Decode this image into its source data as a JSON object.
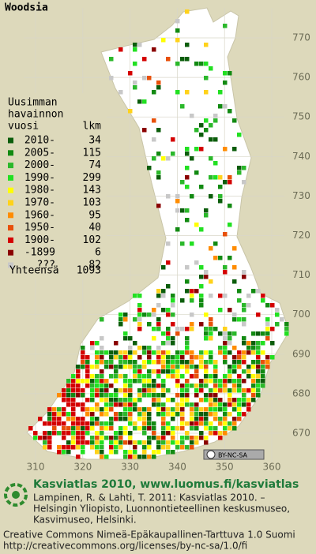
{
  "title": "Woodsia",
  "legend": {
    "heading": [
      "Uusimman",
      "havainnon",
      "vuosi"
    ],
    "count_heading": "lkm",
    "items": [
      {
        "label": "2010-",
        "count": 34,
        "color": "#0b5d0b"
      },
      {
        "label": "2005-",
        "count": 115,
        "color": "#128a12"
      },
      {
        "label": "2000-",
        "count": 74,
        "color": "#2bb82b"
      },
      {
        "label": "1990-",
        "count": 299,
        "color": "#22e022"
      },
      {
        "label": "1980-",
        "count": 143,
        "color": "#ffff00"
      },
      {
        "label": "1970-",
        "count": 103,
        "color": "#ffd21a"
      },
      {
        "label": "1960-",
        "count": 95,
        "color": "#ff8c00"
      },
      {
        "label": "1950-",
        "count": 40,
        "color": "#e8500a"
      },
      {
        "label": "1900-",
        "count": 102,
        "color": "#d40000"
      },
      {
        "label": "-1899",
        "count": 6,
        "color": "#8a0000"
      },
      {
        "label": "???",
        "count": 82,
        "color": "#c8c8c8"
      }
    ],
    "total_label": "Yhteensä",
    "total": 1093
  },
  "grid": {
    "northing_labels": [
      770,
      760,
      750,
      740,
      730,
      720,
      710,
      700,
      690,
      680,
      670
    ],
    "easting_labels": [
      310,
      320,
      330,
      340,
      350,
      360
    ]
  },
  "license_badge": "BY-NC-SA",
  "footer": {
    "title": "Kasviatlas 2010, www.luomus.fi/kasviatlas",
    "citation": [
      "Lampinen, R. & Lahti, T. 2011: Kasviatlas 2010. –",
      "Helsingin Yliopisto, Luonnontieteellinen keskusmuseo,",
      "Kasvimuseo, Helsinki."
    ],
    "license": [
      "Creative Commons Nimeä-Epäkaupallinen-Tarttuva 1.0 Suomi",
      "http://creativecommons.org/licenses/by-nc-sa/1.0/fi"
    ]
  }
}
